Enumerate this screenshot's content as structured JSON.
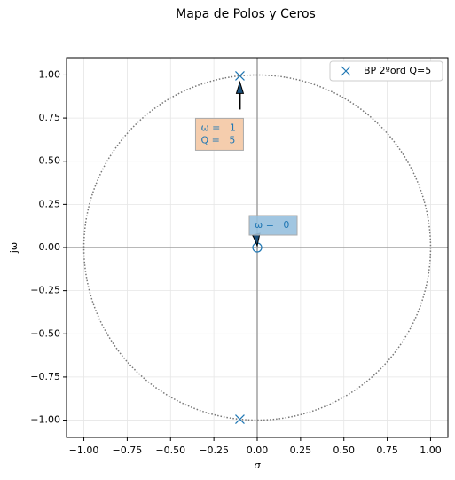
{
  "chart_data": {
    "type": "scatter",
    "title": "Mapa de Polos y Ceros",
    "x_label": "σ",
    "y_label": "jω",
    "xlim": [
      -1.1,
      1.1
    ],
    "ylim": [
      -1.1,
      1.1
    ],
    "xticks": [
      {
        "value": -1,
        "label": "−1.00"
      },
      {
        "value": -0.75,
        "label": "−0.75"
      },
      {
        "value": -0.5,
        "label": "−0.50"
      },
      {
        "value": -0.25,
        "label": "−0.25"
      },
      {
        "value": 0,
        "label": "0.00"
      },
      {
        "value": 0.25,
        "label": "0.25"
      },
      {
        "value": 0.5,
        "label": "0.50"
      },
      {
        "value": 0.75,
        "label": "0.75"
      },
      {
        "value": 1,
        "label": "1.00"
      }
    ],
    "yticks": [
      {
        "value": -1,
        "label": "−1.00"
      },
      {
        "value": -0.75,
        "label": "−0.75"
      },
      {
        "value": -0.5,
        "label": "−0.50"
      },
      {
        "value": -0.25,
        "label": "−0.25"
      },
      {
        "value": 0,
        "label": "0.00"
      },
      {
        "value": 0.25,
        "label": "0.25"
      },
      {
        "value": 0.5,
        "label": "0.50"
      },
      {
        "value": 0.75,
        "label": "0.75"
      },
      {
        "value": 1,
        "label": "1.00"
      }
    ],
    "grid": true,
    "unit_circle": true,
    "legend": "upper right",
    "series": [
      {
        "name": "BP 2ºord Q=5",
        "color": "#1f77b4",
        "x": [
          -0.1,
          -0.1
        ],
        "values": [
          0.995,
          -0.995
        ]
      }
    ],
    "zeros": {
      "color": "#1f77b4",
      "x": [
        0
      ],
      "values": [
        0
      ]
    },
    "annotations": [
      {
        "lines": [
          "ω =   1",
          "Q =   5"
        ],
        "x": -0.1,
        "y": 0.995,
        "color": "#f4c8a4"
      },
      {
        "lines": [
          "ω =   0"
        ],
        "x": 0,
        "y": 0,
        "color": "#97c0de"
      }
    ]
  }
}
